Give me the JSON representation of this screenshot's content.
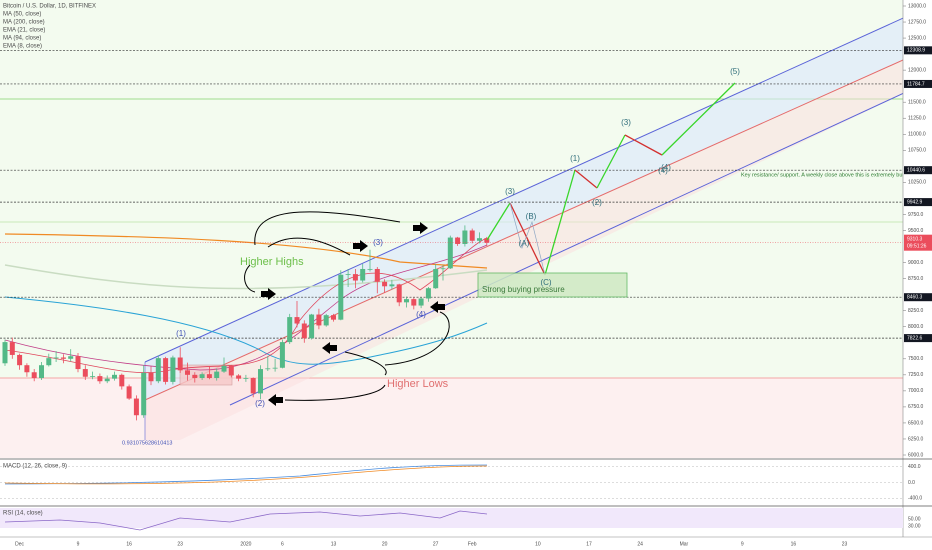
{
  "chart_data": {
    "type": "candlestick",
    "title": "Bitcoin / U.S. Dollar, 1D, BITFINEX",
    "indicators": [
      "MA (50, close)",
      "MA (200, close)",
      "EMA (21, close)",
      "MA (94, close)",
      "EMA (8, close)"
    ],
    "categories": [
      null,
      null,
      "Dec",
      null,
      null,
      null,
      null,
      null,
      null,
      null,
      "9",
      null,
      null,
      null,
      null,
      null,
      null,
      "16",
      null,
      null,
      null,
      null,
      null,
      null,
      "23",
      null,
      null,
      null,
      null,
      null,
      null,
      null,
      null,
      "2020",
      null,
      null,
      null,
      null,
      "6",
      null,
      null,
      null,
      null,
      null,
      null,
      "13",
      null,
      null,
      null,
      null,
      null,
      null,
      "20",
      null,
      null,
      null,
      null,
      null,
      null,
      "27",
      null,
      null,
      null,
      null,
      "Feb",
      null,
      null,
      null,
      null,
      null,
      null,
      null,
      null,
      "10",
      null,
      null,
      null,
      null,
      null,
      null,
      "17",
      null,
      null,
      null,
      null,
      null,
      null,
      "24",
      null,
      null,
      null,
      null,
      null,
      "Mar",
      null,
      null,
      null,
      null,
      null,
      null,
      null,
      "9",
      null,
      null,
      null,
      null,
      null,
      null,
      "16",
      null,
      null,
      null,
      null,
      null,
      null,
      "23",
      null,
      null,
      null,
      null
    ],
    "ohlc": [
      [
        7430,
        7800,
        7390,
        7760
      ],
      [
        7760,
        7830,
        7500,
        7560
      ],
      [
        7560,
        7580,
        7330,
        7400
      ],
      [
        7400,
        7430,
        7220,
        7290
      ],
      [
        7290,
        7340,
        7150,
        7200
      ],
      [
        7200,
        7450,
        7170,
        7400
      ],
      [
        7400,
        7580,
        7380,
        7510
      ],
      [
        7510,
        7620,
        7450,
        7520
      ],
      [
        7520,
        7570,
        7430,
        7500
      ],
      [
        7500,
        7650,
        7460,
        7540
      ],
      [
        7540,
        7590,
        7290,
        7340
      ],
      [
        7340,
        7400,
        7170,
        7220
      ],
      [
        7220,
        7300,
        7180,
        7230
      ],
      [
        7230,
        7270,
        7110,
        7150
      ],
      [
        7150,
        7240,
        7120,
        7190
      ],
      [
        7190,
        7300,
        7160,
        7250
      ],
      [
        7250,
        7270,
        7020,
        7070
      ],
      [
        7070,
        7100,
        6860,
        6880
      ],
      [
        6880,
        6930,
        6540,
        6620
      ],
      [
        6620,
        7400,
        6580,
        7280
      ],
      [
        7280,
        7380,
        7090,
        7150
      ],
      [
        7150,
        7550,
        7120,
        7510
      ],
      [
        7510,
        7530,
        7100,
        7140
      ],
      [
        7140,
        7550,
        7100,
        7520
      ],
      [
        7520,
        7680,
        7280,
        7320
      ],
      [
        7320,
        7440,
        7160,
        7250
      ],
      [
        7250,
        7290,
        7130,
        7200
      ],
      [
        7200,
        7290,
        7170,
        7260
      ],
      [
        7260,
        7380,
        7180,
        7200
      ],
      [
        7200,
        7350,
        7160,
        7300
      ],
      [
        7300,
        7520,
        7280,
        7390
      ],
      [
        7390,
        7400,
        7210,
        7240
      ],
      [
        7240,
        7260,
        7150,
        7190
      ],
      [
        7190,
        7250,
        7140,
        7200
      ],
      [
        7200,
        7210,
        6900,
        6960
      ],
      [
        6960,
        7400,
        6870,
        7340
      ],
      [
        7340,
        7540,
        7310,
        7350
      ],
      [
        7350,
        7500,
        7300,
        7360
      ],
      [
        7360,
        7800,
        7350,
        7760
      ],
      [
        7760,
        8200,
        7730,
        8150
      ],
      [
        8150,
        8400,
        7990,
        8050
      ],
      [
        8050,
        8100,
        7750,
        7820
      ],
      [
        7820,
        8200,
        7800,
        8190
      ],
      [
        8190,
        8280,
        7960,
        8020
      ],
      [
        8020,
        8200,
        8000,
        8180
      ],
      [
        8180,
        8200,
        8080,
        8110
      ],
      [
        8110,
        8880,
        8100,
        8810
      ],
      [
        8810,
        8900,
        8620,
        8820
      ],
      [
        8820,
        8900,
        8600,
        8720
      ],
      [
        8720,
        8980,
        8690,
        8900
      ],
      [
        8900,
        9200,
        8860,
        8900
      ],
      [
        8900,
        8930,
        8520,
        8700
      ],
      [
        8700,
        8740,
        8530,
        8630
      ],
      [
        8630,
        8730,
        8580,
        8660
      ],
      [
        8660,
        8670,
        8320,
        8380
      ],
      [
        8380,
        8470,
        8300,
        8430
      ],
      [
        8430,
        8450,
        8270,
        8330
      ],
      [
        8330,
        8460,
        8290,
        8440
      ],
      [
        8440,
        8620,
        8390,
        8600
      ],
      [
        8600,
        8980,
        8590,
        8900
      ],
      [
        8900,
        8960,
        8720,
        8910
      ],
      [
        8910,
        9420,
        8900,
        9390
      ],
      [
        9390,
        9400,
        9260,
        9290
      ],
      [
        9290,
        9580,
        9250,
        9500
      ],
      [
        9500,
        9530,
        9300,
        9340
      ],
      [
        9340,
        9470,
        9300,
        9380
      ],
      [
        9380,
        9400,
        9260,
        9310
      ],
      null,
      null,
      null,
      null,
      null,
      null,
      null,
      null,
      null,
      null,
      null,
      null,
      null,
      null,
      null,
      null,
      null,
      null,
      null,
      null,
      null,
      null,
      null,
      null,
      null,
      null,
      null,
      null,
      null,
      null,
      null,
      null,
      null,
      null,
      null,
      null,
      null,
      null,
      null,
      null,
      null,
      null,
      null,
      null,
      null,
      null,
      null,
      null,
      null,
      null,
      null,
      null,
      null
    ],
    "up_color": "#53b987",
    "down_color": "#eb4d5c",
    "ylim": [
      6000,
      13000
    ],
    "yticks": [
      {
        "value": 13000,
        "label": "13000.0"
      },
      {
        "value": 12750,
        "label": "12750.0"
      },
      {
        "value": 12500,
        "label": "12500.0"
      },
      {
        "value": 12000,
        "label": "12000.0"
      },
      {
        "value": 11500,
        "label": "11500.0"
      },
      {
        "value": 11250,
        "label": "11250.0"
      },
      {
        "value": 11000,
        "label": "11000.0"
      },
      {
        "value": 10750,
        "label": "10750.0"
      },
      {
        "value": 10250,
        "label": "10250.0"
      },
      {
        "value": 9750,
        "label": "9750.0"
      },
      {
        "value": 9500,
        "label": "9500.0"
      },
      {
        "value": 9000,
        "label": "9000.0"
      },
      {
        "value": 8750,
        "label": "8750.0"
      },
      {
        "value": 8250,
        "label": "8250.0"
      },
      {
        "value": 8000,
        "label": "8000.0"
      },
      {
        "value": 7500,
        "label": "7500.0"
      },
      {
        "value": 7250,
        "label": "7250.0"
      },
      {
        "value": 7000,
        "label": "7000.0"
      },
      {
        "value": 6750,
        "label": "6750.0"
      },
      {
        "value": 6500,
        "label": "6500.0"
      },
      {
        "value": 6250,
        "label": "6250.0"
      },
      {
        "value": 6000,
        "label": "6000.0"
      }
    ],
    "levels": [
      12308.9,
      11784.7,
      10440.6,
      9942.9,
      8460.3,
      7822.6
    ],
    "last_price_label": "9310.3",
    "countdown": "09:51:26",
    "annotations": [
      "Higher Highs",
      "Higher Lows",
      "Strong buying pressure",
      "Key resistance/ support. A weekly close above this is extremely bullish.",
      "0.931075628610413"
    ],
    "waves": [
      "(1)",
      "(2)",
      "(3)",
      "(4)",
      "(3)",
      "(4)",
      "(5)",
      "(A)",
      "(B)",
      "(C)",
      "(1)",
      "(2)",
      "(3)",
      "(4)",
      "(5)"
    ],
    "panels": [
      {
        "title": "MACD (12, 26, close, 9)",
        "ylim": [
          -520,
          520
        ],
        "yticks": [
          {
            "value": 400,
            "label": "400.0"
          },
          {
            "value": 0,
            "label": "0.0"
          },
          {
            "value": -400,
            "label": "-400.0"
          }
        ]
      },
      {
        "title": "RSI (14, close)",
        "ylim": [
          20,
          80
        ],
        "yticks": [
          {
            "value": 50,
            "label": "50.00"
          },
          {
            "value": 30,
            "label": "30.00"
          }
        ]
      }
    ]
  }
}
